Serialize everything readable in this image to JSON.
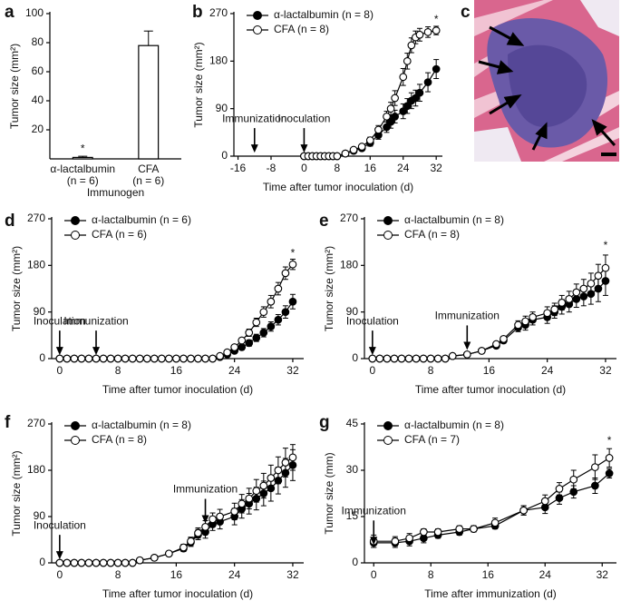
{
  "chart_data": [
    {
      "panel": "a",
      "type": "bar",
      "ylabel": "Tumor size (mm²)",
      "xlabel": "Immunogen",
      "categories": [
        "α-lactalbumin",
        "CFA"
      ],
      "category_sublabels": [
        "(n = 6)",
        "(n = 6)"
      ],
      "values": [
        1,
        78
      ],
      "errors": [
        0.8,
        10
      ],
      "color": "#000000",
      "fill": "#ffffff",
      "ylim": [
        0,
        100
      ],
      "yticks": [
        20,
        40,
        60,
        80,
        100
      ],
      "annotations": [
        {
          "text": "*",
          "x": 0,
          "y": 3,
          "arrow": false
        }
      ]
    },
    {
      "panel": "b",
      "type": "line",
      "ylabel": "Tumor size (mm²)",
      "xlabel": "Time after tumor inoculation (d)",
      "xlim": [
        -17,
        33.5
      ],
      "xticks": [
        -16,
        -8,
        0,
        8,
        16,
        24,
        32
      ],
      "ylim": [
        0,
        270
      ],
      "yticks": [
        0,
        90,
        180,
        270
      ],
      "x": [
        0,
        1,
        2,
        3,
        4,
        5,
        6,
        7,
        8,
        10,
        12,
        14,
        16,
        18,
        20,
        21,
        22,
        24,
        25,
        26,
        27,
        28,
        30,
        32
      ],
      "series": [
        {
          "name": "α-lactalbumin (n = 8)",
          "color": "#000000",
          "marker": "filled",
          "values": [
            0,
            0,
            0,
            0,
            0,
            0,
            0,
            0,
            0,
            5,
            10,
            15,
            25,
            40,
            55,
            65,
            75,
            85,
            95,
            105,
            110,
            120,
            140,
            165
          ],
          "errors": [
            0,
            0,
            0,
            0,
            0,
            0,
            0,
            0,
            1,
            2,
            3,
            4,
            6,
            8,
            10,
            12,
            12,
            14,
            14,
            15,
            15,
            16,
            18,
            18
          ]
        },
        {
          "name": "CFA (n = 8)",
          "color": "#000000",
          "marker": "open",
          "values": [
            0,
            0,
            0,
            0,
            0,
            0,
            0,
            0,
            0,
            5,
            12,
            18,
            30,
            50,
            75,
            90,
            110,
            150,
            180,
            210,
            225,
            230,
            235,
            238
          ],
          "errors": [
            0,
            0,
            0,
            0,
            0,
            0,
            0,
            0,
            1,
            2,
            3,
            4,
            6,
            8,
            10,
            12,
            14,
            16,
            15,
            14,
            12,
            12,
            10,
            8
          ]
        }
      ],
      "annotations": [
        {
          "text": "Immunization",
          "x": -12,
          "y": 5,
          "arrow": true
        },
        {
          "text": "Inoculation",
          "x": 0,
          "y": 5,
          "arrow": true
        },
        {
          "text": "*",
          "x": 32,
          "y": 258,
          "arrow": false
        }
      ]
    },
    {
      "panel": "d",
      "type": "line",
      "ylabel": "Tumor size (mm²)",
      "xlabel": "Time after tumor inoculation (d)",
      "xlim": [
        -1.1,
        33.5
      ],
      "xticks": [
        0,
        8,
        16,
        24,
        32
      ],
      "ylim": [
        0,
        270
      ],
      "yticks": [
        0,
        90,
        180,
        270
      ],
      "x": [
        0,
        1,
        2,
        3,
        4,
        5,
        6,
        7,
        8,
        9,
        10,
        11,
        12,
        13,
        14,
        15,
        16,
        17,
        18,
        19,
        20,
        21,
        22,
        23,
        24,
        25,
        26,
        27,
        28,
        29,
        30,
        31,
        32
      ],
      "series": [
        {
          "name": "α-lactalbumin (n = 6)",
          "color": "#000000",
          "marker": "filled",
          "values": [
            0,
            0,
            0,
            0,
            0,
            0,
            0,
            0,
            0,
            0,
            0,
            0,
            0,
            0,
            0,
            0,
            0,
            0,
            0,
            0,
            0,
            0,
            3,
            8,
            15,
            22,
            30,
            40,
            50,
            62,
            75,
            90,
            110
          ],
          "errors": [
            0,
            0,
            0,
            0,
            0,
            0,
            0,
            0,
            0,
            0,
            0,
            0,
            0,
            0,
            0,
            0,
            0,
            0,
            0,
            0,
            0,
            0,
            2,
            3,
            4,
            5,
            6,
            7,
            8,
            9,
            10,
            12,
            14
          ]
        },
        {
          "name": "CFA (n = 6)",
          "color": "#000000",
          "marker": "open",
          "values": [
            0,
            0,
            0,
            0,
            0,
            0,
            0,
            0,
            0,
            0,
            0,
            0,
            0,
            0,
            0,
            0,
            0,
            0,
            0,
            0,
            0,
            0,
            5,
            12,
            22,
            35,
            50,
            70,
            90,
            110,
            135,
            165,
            182
          ],
          "errors": [
            0,
            0,
            0,
            0,
            0,
            0,
            0,
            0,
            0,
            0,
            0,
            0,
            0,
            0,
            0,
            0,
            0,
            0,
            0,
            0,
            0,
            0,
            2,
            3,
            4,
            5,
            7,
            8,
            10,
            12,
            12,
            12,
            10
          ]
        }
      ],
      "annotations": [
        {
          "text": "Inoculation",
          "x": 0,
          "y": 5,
          "arrow": true
        },
        {
          "text": "Immunization",
          "x": 5,
          "y": 5,
          "arrow": true
        },
        {
          "text": "*",
          "x": 32,
          "y": 203,
          "arrow": false
        }
      ]
    },
    {
      "panel": "e",
      "type": "line",
      "ylabel": "Tumor size (mm²)",
      "xlabel": "Time after tumor inoculation (d)",
      "xlim": [
        -1.1,
        33.5
      ],
      "xticks": [
        0,
        8,
        16,
        24,
        32
      ],
      "ylim": [
        0,
        270
      ],
      "yticks": [
        0,
        90,
        180,
        270
      ],
      "x": [
        0,
        1,
        2,
        3,
        4,
        5,
        6,
        7,
        8,
        9,
        10,
        11,
        13,
        15,
        17,
        18,
        20,
        21,
        22,
        24,
        25,
        26,
        27,
        28,
        29,
        30,
        31,
        32
      ],
      "series": [
        {
          "name": "α-lactalbumin (n = 8)",
          "color": "#000000",
          "marker": "filled",
          "values": [
            0,
            0,
            0,
            0,
            0,
            0,
            0,
            0,
            0,
            0,
            0,
            5,
            8,
            15,
            25,
            35,
            60,
            65,
            75,
            80,
            90,
            100,
            105,
            115,
            120,
            125,
            135,
            150
          ],
          "errors": [
            0,
            0,
            0,
            0,
            0,
            0,
            0,
            0,
            0,
            0,
            0,
            1,
            2,
            3,
            4,
            5,
            8,
            10,
            10,
            12,
            12,
            14,
            15,
            16,
            18,
            20,
            25,
            28
          ]
        },
        {
          "name": "CFA (n = 8)",
          "color": "#000000",
          "marker": "open",
          "values": [
            0,
            0,
            0,
            0,
            0,
            0,
            0,
            0,
            0,
            0,
            0,
            5,
            8,
            15,
            28,
            38,
            65,
            72,
            80,
            88,
            95,
            108,
            115,
            128,
            135,
            145,
            160,
            175
          ],
          "errors": [
            0,
            0,
            0,
            0,
            0,
            0,
            0,
            0,
            0,
            0,
            0,
            1,
            2,
            3,
            4,
            5,
            8,
            10,
            10,
            12,
            12,
            14,
            15,
            16,
            18,
            20,
            22,
            25
          ]
        }
      ],
      "annotations": [
        {
          "text": "Inoculation",
          "x": 0,
          "y": 5,
          "arrow": true
        },
        {
          "text": "Immunization",
          "x": 13,
          "y": 15,
          "arrow": true
        },
        {
          "text": "*",
          "x": 32,
          "y": 218,
          "arrow": false
        }
      ]
    },
    {
      "panel": "f",
      "type": "line",
      "ylabel": "Tumor size (mm²)",
      "xlabel": "Time after tumor inoculation (d)",
      "xlim": [
        -1.1,
        33.5
      ],
      "xticks": [
        0,
        8,
        16,
        24,
        32
      ],
      "ylim": [
        0,
        270
      ],
      "yticks": [
        0,
        90,
        180,
        270
      ],
      "x": [
        0,
        1,
        2,
        3,
        4,
        5,
        6,
        7,
        8,
        9,
        10,
        11,
        13,
        15,
        17,
        18,
        19,
        20,
        21,
        22,
        24,
        25,
        26,
        27,
        28,
        29,
        30,
        31,
        32
      ],
      "series": [
        {
          "name": "α-lactalbumin (n = 8)",
          "color": "#000000",
          "marker": "filled",
          "values": [
            0,
            0,
            0,
            0,
            0,
            0,
            0,
            0,
            0,
            0,
            0,
            5,
            10,
            18,
            28,
            40,
            55,
            60,
            75,
            80,
            90,
            105,
            115,
            125,
            135,
            145,
            160,
            175,
            190
          ],
          "errors": [
            0,
            0,
            0,
            0,
            0,
            0,
            0,
            0,
            0,
            0,
            0,
            2,
            3,
            4,
            6,
            8,
            10,
            12,
            12,
            14,
            16,
            18,
            20,
            22,
            24,
            25,
            26,
            28,
            30
          ]
        },
        {
          "name": "CFA (n = 8)",
          "color": "#000000",
          "marker": "open",
          "values": [
            0,
            0,
            0,
            0,
            0,
            0,
            0,
            0,
            0,
            0,
            0,
            5,
            10,
            18,
            30,
            42,
            58,
            70,
            85,
            90,
            100,
            115,
            125,
            140,
            150,
            165,
            180,
            195,
            205
          ],
          "errors": [
            0,
            0,
            0,
            0,
            0,
            0,
            0,
            0,
            0,
            0,
            0,
            2,
            3,
            4,
            6,
            8,
            10,
            12,
            12,
            14,
            16,
            18,
            20,
            22,
            24,
            25,
            26,
            28,
            25
          ]
        }
      ],
      "annotations": [
        {
          "text": "Inoculation",
          "x": 0,
          "y": 5,
          "arrow": true
        },
        {
          "text": "Immunization",
          "x": 20,
          "y": 75,
          "arrow": true
        }
      ]
    },
    {
      "panel": "g",
      "type": "line",
      "ylabel": "Tumor size (mm)",
      "xlabel": "Time after immunization (d)",
      "xlim": [
        -1.3,
        34
      ],
      "xticks": [
        0,
        8,
        16,
        24,
        32
      ],
      "ylim": [
        0,
        45
      ],
      "yticks": [
        0,
        15,
        30,
        45
      ],
      "x": [
        0,
        3,
        5,
        7,
        9,
        12,
        14,
        17,
        21,
        24,
        26,
        28,
        31,
        33
      ],
      "series": [
        {
          "name": "α-lactalbumin (n = 8)",
          "color": "#000000",
          "marker": "filled",
          "values": [
            6.5,
            6.5,
            7,
            8,
            9,
            10,
            11,
            12,
            17,
            18,
            21,
            23,
            25,
            29
          ],
          "errors": [
            1.5,
            1.5,
            1.5,
            1.5,
            1,
            1,
            1,
            1,
            1.5,
            2,
            2,
            2,
            2.5,
            1.5
          ]
        },
        {
          "name": "CFA (n = 7)",
          "color": "#000000",
          "marker": "open",
          "values": [
            7,
            7,
            8,
            10,
            10,
            11,
            11,
            13,
            17,
            20,
            24,
            27,
            31,
            34
          ],
          "errors": [
            2,
            1.5,
            1.5,
            1,
            1,
            1,
            1,
            1.5,
            1.5,
            2,
            2,
            3,
            4,
            3
          ]
        }
      ],
      "annotations": [
        {
          "text": "Immunization",
          "x": 0,
          "y": 5.5,
          "arrow": true
        },
        {
          "text": "*",
          "x": 33,
          "y": 39.5,
          "arrow": false
        }
      ]
    }
  ],
  "image_panel": {
    "panel": "c"
  }
}
